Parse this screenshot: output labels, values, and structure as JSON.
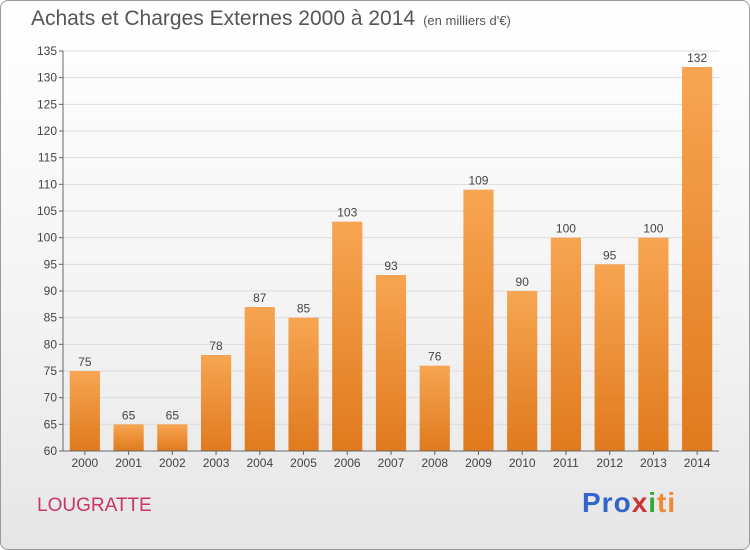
{
  "header": {
    "title": "Achats et Charges Externes 2000 à 2014",
    "unit": "(en milliers d'€)"
  },
  "footer": {
    "commune": "LOUGRATTE",
    "logo": [
      "Pro",
      "x",
      "i",
      "ti"
    ]
  },
  "chart_data": {
    "type": "bar",
    "title": "Achats et Charges Externes 2000 à 2014",
    "subtitle": "(en milliers d'€)",
    "xlabel": "",
    "ylabel": "",
    "categories": [
      "2000",
      "2001",
      "2002",
      "2003",
      "2004",
      "2005",
      "2006",
      "2007",
      "2008",
      "2009",
      "2010",
      "2011",
      "2012",
      "2013",
      "2014"
    ],
    "values": [
      75,
      65,
      65,
      78,
      87,
      85,
      103,
      93,
      76,
      109,
      90,
      100,
      95,
      100,
      132
    ],
    "ylim": [
      60,
      135
    ],
    "yticks": [
      60,
      65,
      70,
      75,
      80,
      85,
      90,
      95,
      100,
      105,
      110,
      115,
      120,
      125,
      130,
      135
    ],
    "grid": true,
    "legend": "none",
    "colors": {
      "bar_top": "#f7a552",
      "bar_bottom": "#e07a1e",
      "axis": "#666666",
      "grid": "#dddddd"
    }
  }
}
